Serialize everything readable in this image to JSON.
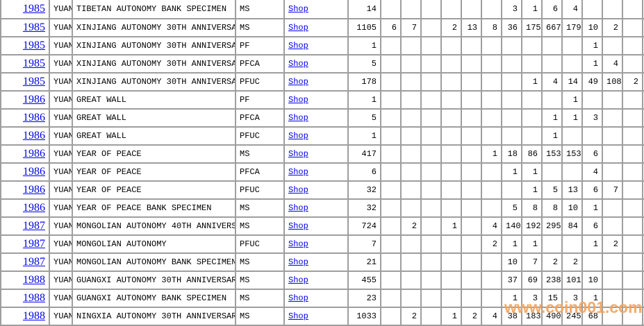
{
  "colors": {
    "link_blue": "#0000ee",
    "grid_border": "#9e9e9e",
    "watermark_orange": "#f6a45c"
  },
  "watermark": {
    "text": "www.coin001.com"
  },
  "table": {
    "shop_label": "Shop",
    "rows": [
      {
        "year": "1985",
        "unit": "YUAN",
        "description": "TIBETAN AUTONOMY BANK SPECIMEN",
        "grade": "MS",
        "total": "14",
        "counts": [
          "",
          "",
          "",
          "",
          "",
          "",
          "3",
          "1",
          "6",
          "4",
          "",
          "",
          ""
        ]
      },
      {
        "year": "1985",
        "unit": "YUAN",
        "description": "XINJIANG AUTONOMY 30TH ANNIVERSARY",
        "grade": "MS",
        "total": "1105",
        "counts": [
          "6",
          "7",
          "",
          "2",
          "13",
          "8",
          "36",
          "175",
          "667",
          "179",
          "10",
          "2",
          ""
        ]
      },
      {
        "year": "1985",
        "unit": "YUAN",
        "description": "XINJIANG AUTONOMY 30TH ANNIVERSARY",
        "grade": "PF",
        "total": "1",
        "counts": [
          "",
          "",
          "",
          "",
          "",
          "",
          "",
          "",
          "",
          "",
          "1",
          "",
          ""
        ]
      },
      {
        "year": "1985",
        "unit": "YUAN",
        "description": "XINJIANG AUTONOMY 30TH ANNIVERSARY",
        "grade": "PFCA",
        "total": "5",
        "counts": [
          "",
          "",
          "",
          "",
          "",
          "",
          "",
          "",
          "",
          "",
          "1",
          "4",
          ""
        ]
      },
      {
        "year": "1985",
        "unit": "YUAN",
        "description": "XINJIANG AUTONOMY 30TH ANNIVERSARY",
        "grade": "PFUC",
        "total": "178",
        "counts": [
          "",
          "",
          "",
          "",
          "",
          "",
          "",
          "1",
          "4",
          "14",
          "49",
          "108",
          "2"
        ]
      },
      {
        "year": "1986",
        "unit": "YUAN",
        "description": "GREAT WALL",
        "grade": "PF",
        "total": "1",
        "counts": [
          "",
          "",
          "",
          "",
          "",
          "",
          "",
          "",
          "",
          "1",
          "",
          "",
          ""
        ]
      },
      {
        "year": "1986",
        "unit": "YUAN",
        "description": "GREAT WALL",
        "grade": "PFCA",
        "total": "5",
        "counts": [
          "",
          "",
          "",
          "",
          "",
          "",
          "",
          "",
          "1",
          "1",
          "3",
          "",
          ""
        ]
      },
      {
        "year": "1986",
        "unit": "YUAN",
        "description": "GREAT WALL",
        "grade": "PFUC",
        "total": "1",
        "counts": [
          "",
          "",
          "",
          "",
          "",
          "",
          "",
          "",
          "1",
          "",
          "",
          "",
          ""
        ]
      },
      {
        "year": "1986",
        "unit": "YUAN",
        "description": "YEAR OF PEACE",
        "grade": "MS",
        "total": "417",
        "counts": [
          "",
          "",
          "",
          "",
          "",
          "1",
          "18",
          "86",
          "153",
          "153",
          "6",
          "",
          ""
        ]
      },
      {
        "year": "1986",
        "unit": "YUAN",
        "description": "YEAR OF PEACE",
        "grade": "PFCA",
        "total": "6",
        "counts": [
          "",
          "",
          "",
          "",
          "",
          "",
          "1",
          "1",
          "",
          "",
          "4",
          "",
          ""
        ]
      },
      {
        "year": "1986",
        "unit": "YUAN",
        "description": "YEAR OF PEACE",
        "grade": "PFUC",
        "total": "32",
        "counts": [
          "",
          "",
          "",
          "",
          "",
          "",
          "",
          "1",
          "5",
          "13",
          "6",
          "7",
          ""
        ]
      },
      {
        "year": "1986",
        "unit": "YUAN",
        "description": "YEAR OF PEACE BANK SPECIMEN",
        "grade": "MS",
        "total": "32",
        "counts": [
          "",
          "",
          "",
          "",
          "",
          "",
          "5",
          "8",
          "8",
          "10",
          "1",
          "",
          ""
        ]
      },
      {
        "year": "1987",
        "unit": "YUAN",
        "description": "MONGOLIAN AUTONOMY 40TH ANNIVERSARY",
        "grade": "MS",
        "total": "724",
        "counts": [
          "",
          "2",
          "",
          "1",
          "",
          "4",
          "140",
          "192",
          "295",
          "84",
          "6",
          "",
          ""
        ]
      },
      {
        "year": "1987",
        "unit": "YUAN",
        "description": "MONGOLIAN AUTONOMY",
        "grade": "PFUC",
        "total": "7",
        "counts": [
          "",
          "",
          "",
          "",
          "",
          "2",
          "1",
          "1",
          "",
          "",
          "1",
          "2",
          ""
        ]
      },
      {
        "year": "1987",
        "unit": "YUAN",
        "description": "MONGOLIAN AUTONOMY BANK SPECIMEN",
        "grade": "MS",
        "total": "21",
        "counts": [
          "",
          "",
          "",
          "",
          "",
          "",
          "10",
          "7",
          "2",
          "2",
          "",
          "",
          ""
        ]
      },
      {
        "year": "1988",
        "unit": "YUAN",
        "description": "GUANGXI AUTONOMY 30TH ANNIVERSARY",
        "grade": "MS",
        "total": "455",
        "counts": [
          "",
          "",
          "",
          "",
          "",
          "",
          "37",
          "69",
          "238",
          "101",
          "10",
          "",
          ""
        ]
      },
      {
        "year": "1988",
        "unit": "YUAN",
        "description": "GUANGXI AUTONOMY BANK SPECIMEN",
        "grade": "MS",
        "total": "23",
        "counts": [
          "",
          "",
          "",
          "",
          "",
          "",
          "1",
          "3",
          "15",
          "3",
          "1",
          "",
          ""
        ]
      },
      {
        "year": "1988",
        "unit": "YUAN",
        "description": "NINGXIA AUTONOMY 30TH ANNIVERSARY",
        "grade": "MS",
        "total": "1033",
        "counts": [
          "",
          "2",
          "",
          "1",
          "2",
          "4",
          "38",
          "183",
          "490",
          "245",
          "68",
          "",
          ""
        ]
      }
    ]
  }
}
